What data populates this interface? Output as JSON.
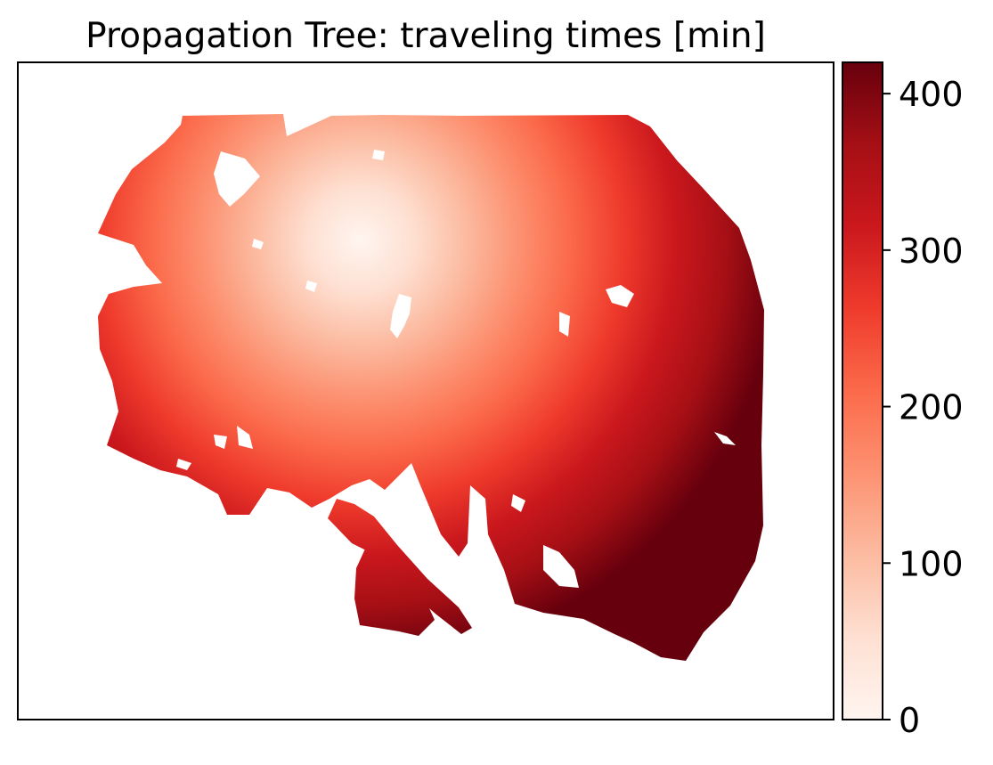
{
  "chart_data": {
    "type": "heatmap",
    "title": "Propagation Tree: traveling times [min]",
    "xlabel": "",
    "ylabel": "",
    "colorbar": {
      "label": "",
      "range": [
        0,
        420
      ],
      "ticks": [
        0,
        100,
        200,
        300,
        400
      ],
      "tick_labels": [
        "0",
        "100",
        "200",
        "300",
        "400"
      ],
      "colormap": "Reds",
      "colormap_stops": [
        "#fff5f0",
        "#fee0d2",
        "#fcbba1",
        "#fc9272",
        "#fb6a4a",
        "#ef3b2c",
        "#cb181d",
        "#a50f15",
        "#67000d"
      ]
    },
    "field": {
      "min_value": 0,
      "max_value": 420,
      "origin_value": 0,
      "perimeter_value": 420
    },
    "axes_visible": false,
    "grid": false,
    "legend": "none"
  }
}
